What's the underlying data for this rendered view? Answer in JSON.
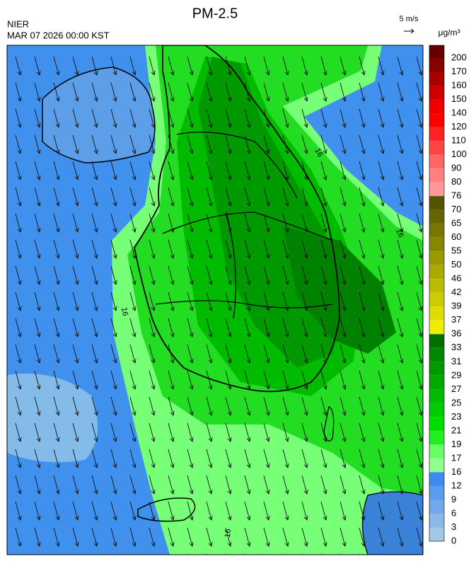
{
  "header": {
    "title": "PM-2.5",
    "agency": "NIER",
    "datetime": "MAR 07 2026 00:00 KST"
  },
  "wind_reference": "5 m/s",
  "contour_label": "16",
  "colorbar": {
    "unit": "μg/m³",
    "labels": [
      200,
      170,
      160,
      150,
      140,
      120,
      110,
      100,
      90,
      80,
      76,
      70,
      65,
      60,
      55,
      50,
      46,
      42,
      39,
      37,
      36,
      33,
      31,
      29,
      27,
      25,
      23,
      21,
      19,
      17,
      16,
      12,
      9,
      6,
      3,
      0
    ],
    "colors": [
      "#660000",
      "#880000",
      "#aa0000",
      "#cc0000",
      "#ee0000",
      "#ff0000",
      "#ff2222",
      "#ff4444",
      "#ff6666",
      "#ff8080",
      "#ff9999",
      "#555500",
      "#666600",
      "#777700",
      "#888800",
      "#999900",
      "#aaaa00",
      "#bbbb00",
      "#cccc00",
      "#dddd00",
      "#eeee00",
      "#007000",
      "#008800",
      "#009900",
      "#00aa00",
      "#00bb00",
      "#00cc00",
      "#00dd00",
      "#22ee22",
      "#66ff66",
      "#90ff90",
      "#3c8cf0",
      "#5a9cee",
      "#70a8ec",
      "#8ab8e8",
      "#a0c8e8"
    ]
  }
}
